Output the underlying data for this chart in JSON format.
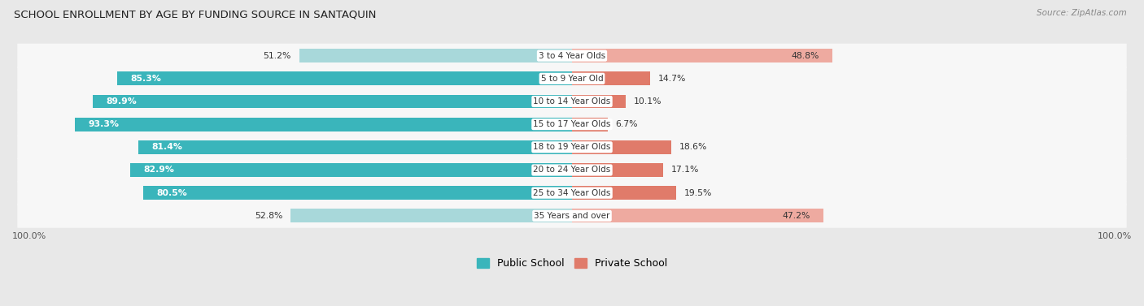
{
  "title": "SCHOOL ENROLLMENT BY AGE BY FUNDING SOURCE IN SANTAQUIN",
  "source": "Source: ZipAtlas.com",
  "categories": [
    "3 to 4 Year Olds",
    "5 to 9 Year Old",
    "10 to 14 Year Olds",
    "15 to 17 Year Olds",
    "18 to 19 Year Olds",
    "20 to 24 Year Olds",
    "25 to 34 Year Olds",
    "35 Years and over"
  ],
  "public_pct": [
    51.2,
    85.3,
    89.9,
    93.3,
    81.4,
    82.9,
    80.5,
    52.8
  ],
  "private_pct": [
    48.8,
    14.7,
    10.1,
    6.7,
    18.6,
    17.1,
    19.5,
    47.2
  ],
  "public_color_dark": "#3ab5bb",
  "public_color_light": "#a8d8da",
  "private_color_dark": "#e07b6a",
  "private_color_light": "#eeaaa0",
  "bg_color": "#e8e8e8",
  "row_bg": "#f7f7f7",
  "title_color": "#222222",
  "label_white": "#ffffff",
  "label_dark": "#333333",
  "axis_label": "100.0%",
  "legend_labels": [
    "Public School",
    "Private School"
  ]
}
